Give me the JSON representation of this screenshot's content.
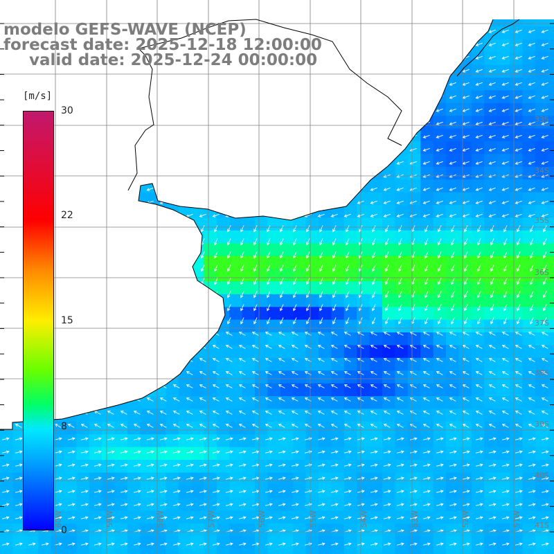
{
  "title": {
    "line1": "modelo GEFS-WAVE (NCEP)",
    "line2": "forecast date: 2025-12-18 12:00:00",
    "line3": "valid date: 2025-12-24 00:00:00"
  },
  "colorbar": {
    "unit": "[m/s]",
    "ticks": [
      "30",
      "22",
      "15",
      "8",
      "0"
    ],
    "colors": [
      "#c2186e",
      "#ff0000",
      "#ff8a00",
      "#ffee00",
      "#66ff00",
      "#00ff66",
      "#00e8ff",
      "#00a0ff",
      "#0000ff"
    ]
  },
  "lat_labels": [
    "33S",
    "34S",
    "35S",
    "36S",
    "37S",
    "38S",
    "39S",
    "40S",
    "41S"
  ],
  "lon_labels": [
    "60W",
    "59W",
    "58W",
    "57W",
    "56W",
    "55W",
    "54W",
    "53W",
    "52W",
    "51W"
  ],
  "colors": {
    "land": "#ffffff",
    "grid": "#808080",
    "coast": "#000000",
    "arrows": "#ffffff"
  }
}
